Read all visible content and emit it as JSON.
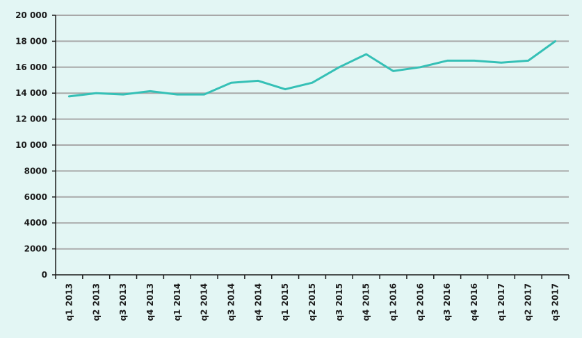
{
  "chart_data": {
    "type": "line",
    "title": "",
    "xlabel": "",
    "ylabel": "",
    "ylim": [
      0,
      20000
    ],
    "yticks": [
      0,
      2000,
      4000,
      6000,
      8000,
      10000,
      12000,
      14000,
      16000,
      18000,
      20000
    ],
    "ytick_labels": [
      "0",
      "2000",
      "4000",
      "6000",
      "8000",
      "10 000",
      "12 000",
      "14 000",
      "16 000",
      "18 000",
      "20 000"
    ],
    "grid": "horizontal",
    "legend": "none",
    "categories": [
      "q1 2013",
      "q2 2013",
      "q3 2013",
      "q4 2013",
      "q1 2014",
      "q2 2014",
      "q3 2014",
      "q4 2014",
      "q1 2015",
      "q2 2015",
      "q3 2015",
      "q4 2015",
      "q1 2016",
      "q2 2016",
      "q3 2016",
      "q4 2016",
      "q1 2017",
      "q2 2017",
      "q3 2017"
    ],
    "series": [
      {
        "values": [
          13750,
          14000,
          13900,
          14150,
          13900,
          13900,
          14800,
          14950,
          14300,
          14800,
          16000,
          17000,
          15700,
          16000,
          16500,
          16500,
          16350,
          16500,
          18000
        ],
        "color": "#35c0b6"
      }
    ]
  },
  "colors": {
    "background": "#e3f6f4",
    "grid": "#a8a8a8",
    "axis": "#1a1a1a",
    "line": "#35c0b6"
  }
}
